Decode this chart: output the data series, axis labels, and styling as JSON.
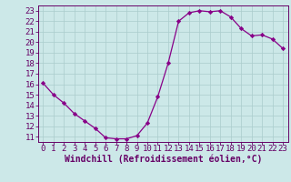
{
  "x": [
    0,
    1,
    2,
    3,
    4,
    5,
    6,
    7,
    8,
    9,
    10,
    11,
    12,
    13,
    14,
    15,
    16,
    17,
    18,
    19,
    20,
    21,
    22,
    23
  ],
  "y": [
    16.1,
    15.0,
    14.2,
    13.2,
    12.5,
    11.8,
    10.9,
    10.8,
    10.8,
    11.1,
    12.3,
    14.8,
    18.0,
    22.0,
    22.8,
    23.0,
    22.9,
    23.0,
    22.4,
    21.3,
    20.6,
    20.7,
    20.3,
    19.4
  ],
  "line_color": "#880088",
  "marker": "D",
  "marker_size": 2.2,
  "bg_color": "#cce8e8",
  "grid_color": "#aacccc",
  "xlabel": "Windchill (Refroidissement éolien,°C)",
  "xlabel_color": "#660066",
  "tick_color": "#660066",
  "spine_color": "#660066",
  "ylim": [
    10.5,
    23.5
  ],
  "xlim": [
    -0.5,
    23.5
  ],
  "yticks": [
    11,
    12,
    13,
    14,
    15,
    16,
    17,
    18,
    19,
    20,
    21,
    22,
    23
  ],
  "xticks": [
    0,
    1,
    2,
    3,
    4,
    5,
    6,
    7,
    8,
    9,
    10,
    11,
    12,
    13,
    14,
    15,
    16,
    17,
    18,
    19,
    20,
    21,
    22,
    23
  ],
  "tick_fontsize": 6.5,
  "xlabel_fontsize": 7.0
}
